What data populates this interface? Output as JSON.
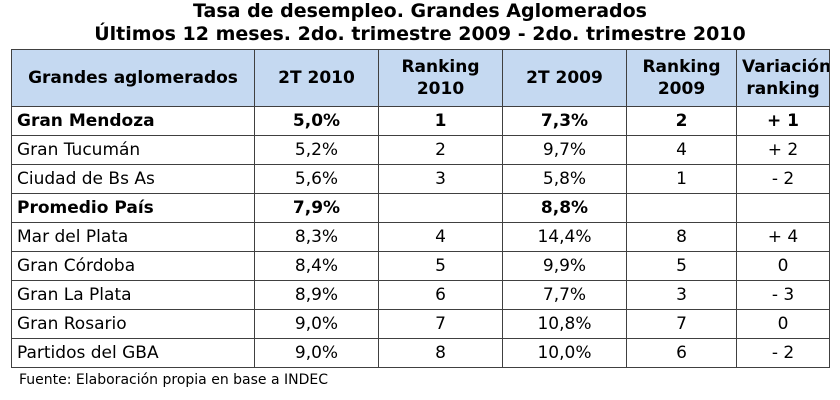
{
  "title": {
    "line1": "Tasa de desempleo. Grandes Aglomerados",
    "line2": "Últimos 12 meses. 2do. trimestre 2009 - 2do. trimestre 2010"
  },
  "table": {
    "headers": [
      "Grandes aglomerados",
      "2T 2010",
      "Ranking 2010",
      "2T 2009",
      "Ranking 2009",
      "Variación ranking"
    ],
    "rows": [
      {
        "name": "Gran Mendoza",
        "t2010": "5,0%",
        "rank2010": "1",
        "t2009": "7,3%",
        "rank2009": "2",
        "variation": "+ 1",
        "bold": true
      },
      {
        "name": "Gran Tucumán",
        "t2010": "5,2%",
        "rank2010": "2",
        "t2009": "9,7%",
        "rank2009": "4",
        "variation": "+ 2",
        "bold": false
      },
      {
        "name": "Ciudad de Bs As",
        "t2010": "5,6%",
        "rank2010": "3",
        "t2009": "5,8%",
        "rank2009": "1",
        "variation": "- 2",
        "bold": false
      },
      {
        "name": "Promedio País",
        "t2010": "7,9%",
        "rank2010": "",
        "t2009": "8,8%",
        "rank2009": "",
        "variation": "",
        "bold": true
      },
      {
        "name": "Mar del Plata",
        "t2010": "8,3%",
        "rank2010": "4",
        "t2009": "14,4%",
        "rank2009": "8",
        "variation": "+ 4",
        "bold": false
      },
      {
        "name": "Gran Córdoba",
        "t2010": "8,4%",
        "rank2010": "5",
        "t2009": "9,9%",
        "rank2009": "5",
        "variation": "0",
        "bold": false
      },
      {
        "name": "Gran La Plata",
        "t2010": "8,9%",
        "rank2010": "6",
        "t2009": "7,7%",
        "rank2009": "3",
        "variation": "- 3",
        "bold": false
      },
      {
        "name": "Gran Rosario",
        "t2010": "9,0%",
        "rank2010": "7",
        "t2009": "10,8%",
        "rank2009": "7",
        "variation": "0",
        "bold": false
      },
      {
        "name": "Partidos del GBA",
        "t2010": "9,0%",
        "rank2010": "8",
        "t2009": "10,0%",
        "rank2009": "6",
        "variation": "- 2",
        "bold": false
      }
    ]
  },
  "source": "Fuente: Elaboración propia en base a INDEC",
  "colors": {
    "header_background": "#c5d9f1",
    "border": "#404040",
    "text": "#000000"
  }
}
